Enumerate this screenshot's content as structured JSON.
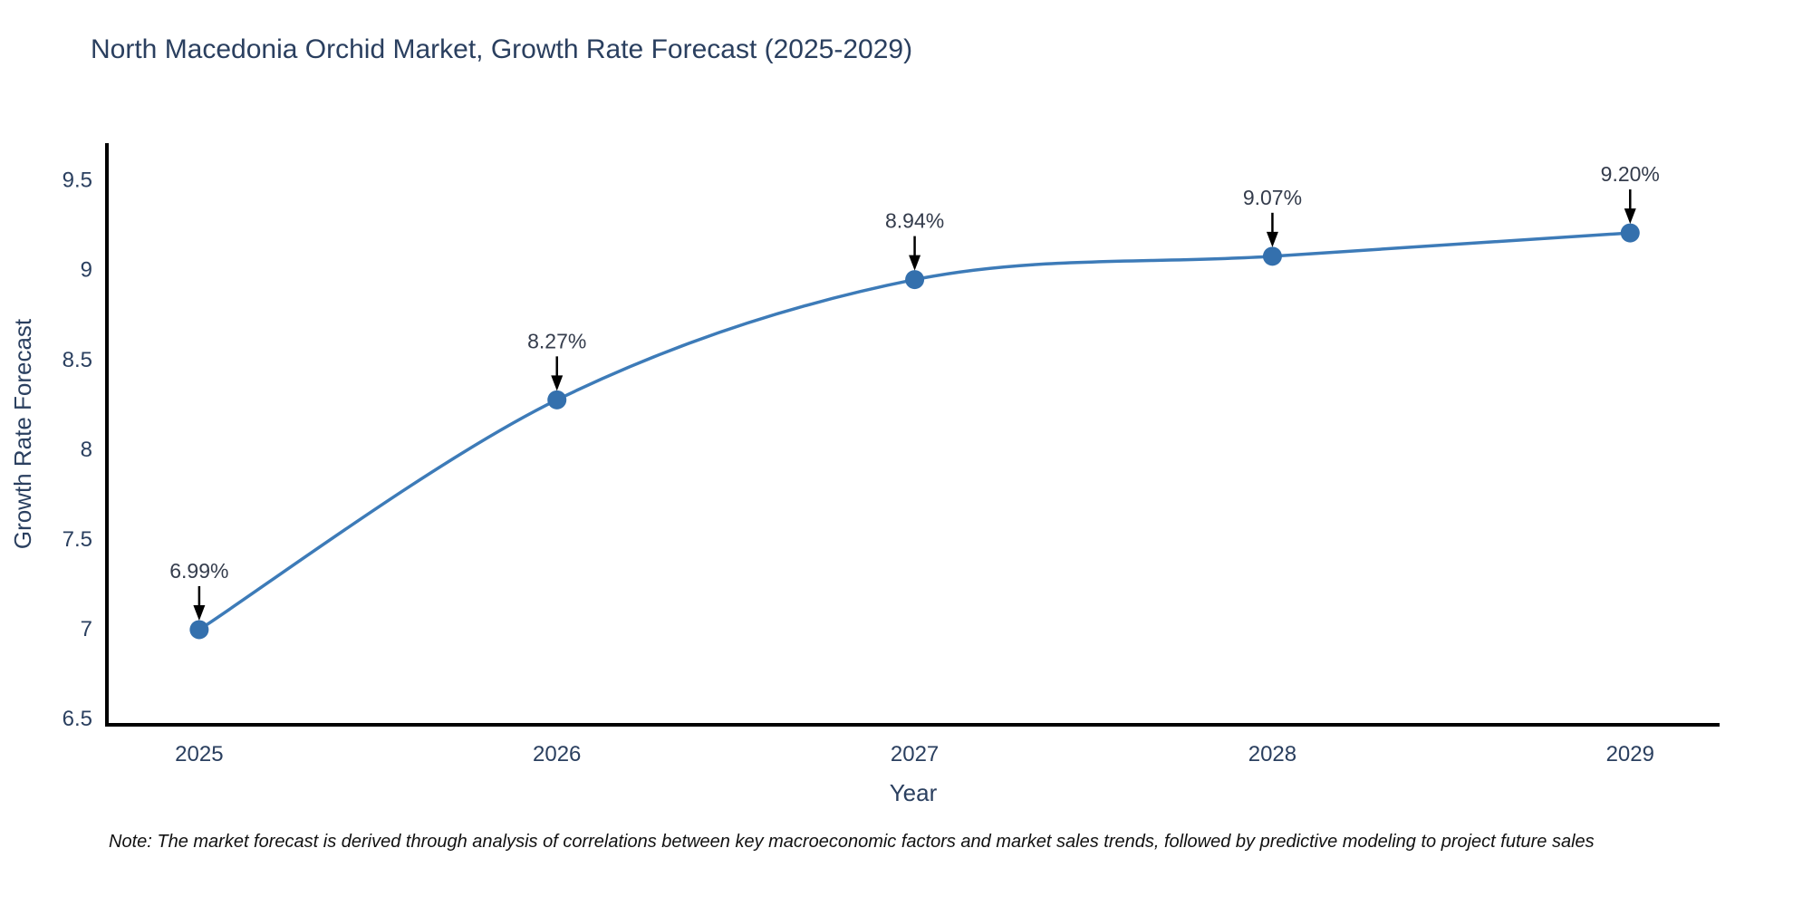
{
  "title": "North Macedonia Orchid Market, Growth Rate Forecast (2025-2029)",
  "note": "Note: The market forecast is derived through analysis of correlations between key macroeconomic factors and market sales trends, followed by predictive modeling to project future sales",
  "chart_data": {
    "type": "line",
    "line_shape": "spline",
    "categories": [
      "2025",
      "2026",
      "2027",
      "2028",
      "2029"
    ],
    "x": [
      2025,
      2026,
      2027,
      2028,
      2029
    ],
    "values": [
      6.99,
      8.27,
      8.94,
      9.07,
      9.2
    ],
    "point_labels": [
      "6.99%",
      "8.27%",
      "8.94%",
      "9.07%",
      "9.20%"
    ],
    "xlabel": "Year",
    "ylabel": "Growth Rate Forecast",
    "xlim": [
      2024.742,
      2029.25
    ],
    "ylim": [
      6.46,
      9.7
    ],
    "yticks": [
      6.5,
      7,
      7.5,
      8,
      8.5,
      9,
      9.5
    ],
    "ytick_labels": [
      "6.5",
      "7",
      "7.5",
      "8",
      "8.5",
      "9",
      "9.5"
    ],
    "grid": false,
    "legend": false,
    "colors": {
      "line": "#3d7bb8",
      "marker": "#3470ad",
      "axis": "#000000",
      "tick_text": "#2a3f5f",
      "axis_title_text": "#2a3f5f",
      "annotation_text": "#343c4c",
      "annotation_arrow": "#000000"
    }
  }
}
